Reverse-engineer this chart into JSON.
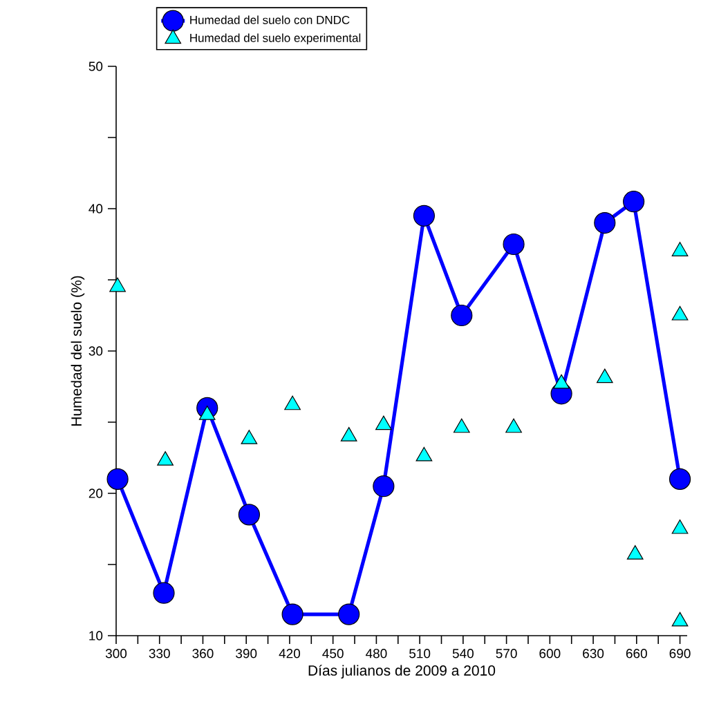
{
  "chart_data": {
    "type": "line",
    "xlabel": "Días julianos de 2009 a 2010",
    "ylabel": "Humedad del suelo (%)",
    "xlim": [
      300,
      695
    ],
    "ylim": [
      10,
      50
    ],
    "xticks": [
      300,
      {
        "value": 315,
        "label": null
      },
      330,
      {
        "value": 345,
        "label": null
      },
      360,
      {
        "value": 375,
        "label": null
      },
      390,
      {
        "value": 405,
        "label": null
      },
      420,
      {
        "value": 435,
        "label": null
      },
      450,
      {
        "value": 465,
        "label": null
      },
      480,
      {
        "value": 495,
        "label": null
      },
      510,
      {
        "value": 525,
        "label": null
      },
      540,
      {
        "value": 555,
        "label": null
      },
      570,
      {
        "value": 585,
        "label": null
      },
      600,
      {
        "value": 615,
        "label": null
      },
      630,
      {
        "value": 645,
        "label": null
      },
      660,
      {
        "value": 675,
        "label": null
      },
      690
    ],
    "yticks": [
      10,
      {
        "value": 15,
        "label": null
      },
      20,
      {
        "value": 25,
        "label": null
      },
      30,
      {
        "value": 35,
        "label": null
      },
      40,
      {
        "value": 45,
        "label": null
      },
      50
    ],
    "legend": "top",
    "series": [
      {
        "name": "Humedad del suelo con DNDC",
        "color": "#0000ff",
        "marker": "circle",
        "x": [
          301,
          333,
          363,
          392,
          422,
          461,
          485,
          513,
          539,
          575,
          608,
          638,
          658,
          690
        ],
        "values": [
          21,
          13,
          26,
          18.5,
          11.5,
          11.5,
          20.5,
          39.5,
          32.5,
          37.5,
          27,
          39,
          40.5,
          21
        ]
      },
      {
        "name": "Humedad del suelo experimental",
        "type": "scatter",
        "color": "#00ffff",
        "marker": "triangle",
        "x": [
          301,
          334,
          363,
          392,
          422,
          461,
          485,
          513,
          539,
          575,
          608,
          638,
          659,
          690,
          690,
          690,
          690
        ],
        "values": [
          34.5,
          22.3,
          25.5,
          23.8,
          26.2,
          24,
          24.8,
          22.6,
          24.6,
          24.6,
          27.7,
          28.1,
          15.7,
          37,
          32.5,
          17.5,
          11
        ]
      }
    ]
  }
}
